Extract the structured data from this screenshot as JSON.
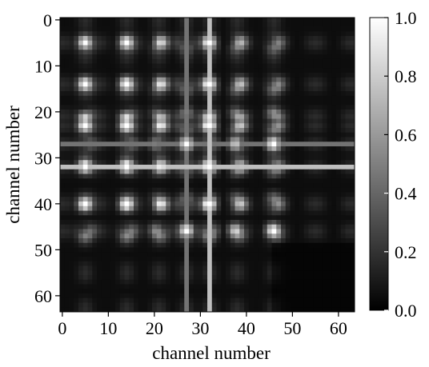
{
  "chart_data": {
    "type": "heatmap",
    "title": "",
    "xlabel": "channel number",
    "ylabel": "channel number",
    "x_ticks": [
      0,
      10,
      20,
      30,
      40,
      50,
      60
    ],
    "y_ticks": [
      0,
      10,
      20,
      30,
      40,
      50,
      60
    ],
    "x_range": [
      0,
      63
    ],
    "y_range": [
      0,
      63
    ],
    "y_inverted": true,
    "colorbar": {
      "colormap": "gray",
      "min": 0.0,
      "max": 1.0,
      "ticks": [
        "1.0",
        "0.8",
        "0.6",
        "0.4",
        "0.2",
        "0.0"
      ]
    },
    "structure": {
      "matrix_size": 64,
      "bright_rows": [
        5,
        14,
        21,
        23,
        27,
        32,
        40,
        46
      ],
      "bright_cols": [
        5,
        14,
        21,
        27,
        32,
        38,
        46
      ],
      "peak_value": 1.0,
      "background_value": 0.05
    }
  }
}
